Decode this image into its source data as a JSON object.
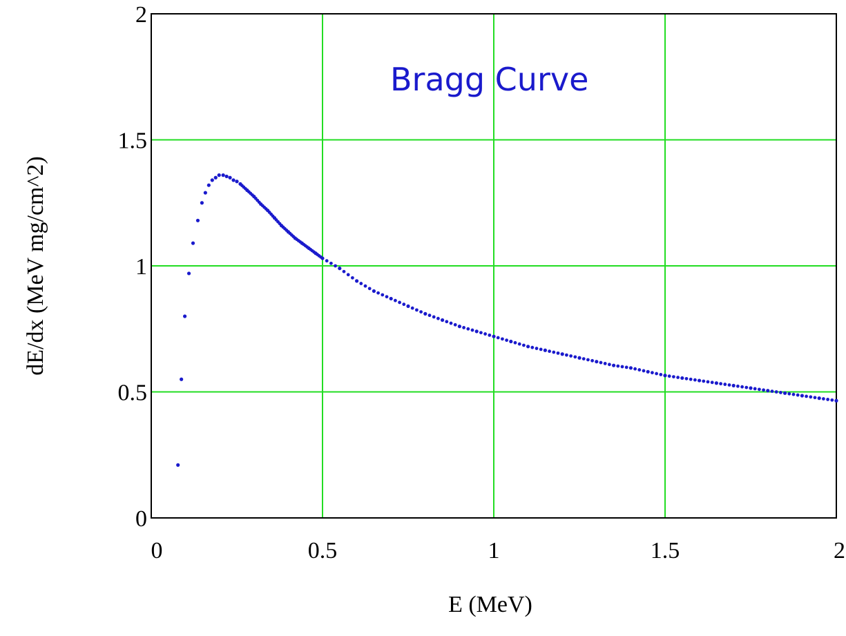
{
  "chart_data": {
    "type": "scatter",
    "title": "Bragg Curve",
    "xlabel": "E (MeV)",
    "ylabel": "dE/dx  (MeV mg/cm^2)",
    "xlim": [
      0,
      2
    ],
    "ylim": [
      0,
      2
    ],
    "x_ticks": [
      "0",
      "0.5",
      "1",
      "1.5",
      "2"
    ],
    "y_ticks": [
      "0",
      "0.5",
      "1",
      "1.5",
      "2"
    ],
    "grid": true,
    "colors": {
      "grid": "#22dd22",
      "points": "#1a1acc",
      "title": "#1a1acc"
    },
    "series": [
      {
        "marker": "dot",
        "x": [
          0.078,
          0.088,
          0.098,
          0.11,
          0.122,
          0.136,
          0.148,
          0.158,
          0.168,
          0.178,
          0.188,
          0.198,
          0.21,
          0.22,
          0.23,
          0.24,
          0.25,
          0.26,
          0.28,
          0.3,
          0.32,
          0.34,
          0.36,
          0.38,
          0.4,
          0.42,
          0.44,
          0.46,
          0.48,
          0.5,
          0.55,
          0.6,
          0.65,
          0.7,
          0.75,
          0.8,
          0.85,
          0.9,
          0.95,
          1.0,
          1.05,
          1.1,
          1.15,
          1.2,
          1.25,
          1.3,
          1.35,
          1.4,
          1.45,
          1.5,
          1.55,
          1.6,
          1.65,
          1.7,
          1.75,
          1.8,
          1.85,
          1.9,
          1.95,
          2.0
        ],
        "y": [
          0.21,
          0.55,
          0.8,
          0.97,
          1.09,
          1.18,
          1.25,
          1.29,
          1.32,
          1.34,
          1.35,
          1.36,
          1.36,
          1.355,
          1.35,
          1.34,
          1.335,
          1.325,
          1.3,
          1.275,
          1.245,
          1.22,
          1.19,
          1.16,
          1.135,
          1.11,
          1.09,
          1.07,
          1.05,
          1.03,
          0.99,
          0.94,
          0.9,
          0.87,
          0.84,
          0.81,
          0.785,
          0.76,
          0.74,
          0.72,
          0.7,
          0.68,
          0.665,
          0.65,
          0.635,
          0.62,
          0.605,
          0.595,
          0.58,
          0.565,
          0.555,
          0.545,
          0.535,
          0.525,
          0.515,
          0.505,
          0.495,
          0.485,
          0.475,
          0.465
        ]
      }
    ]
  }
}
